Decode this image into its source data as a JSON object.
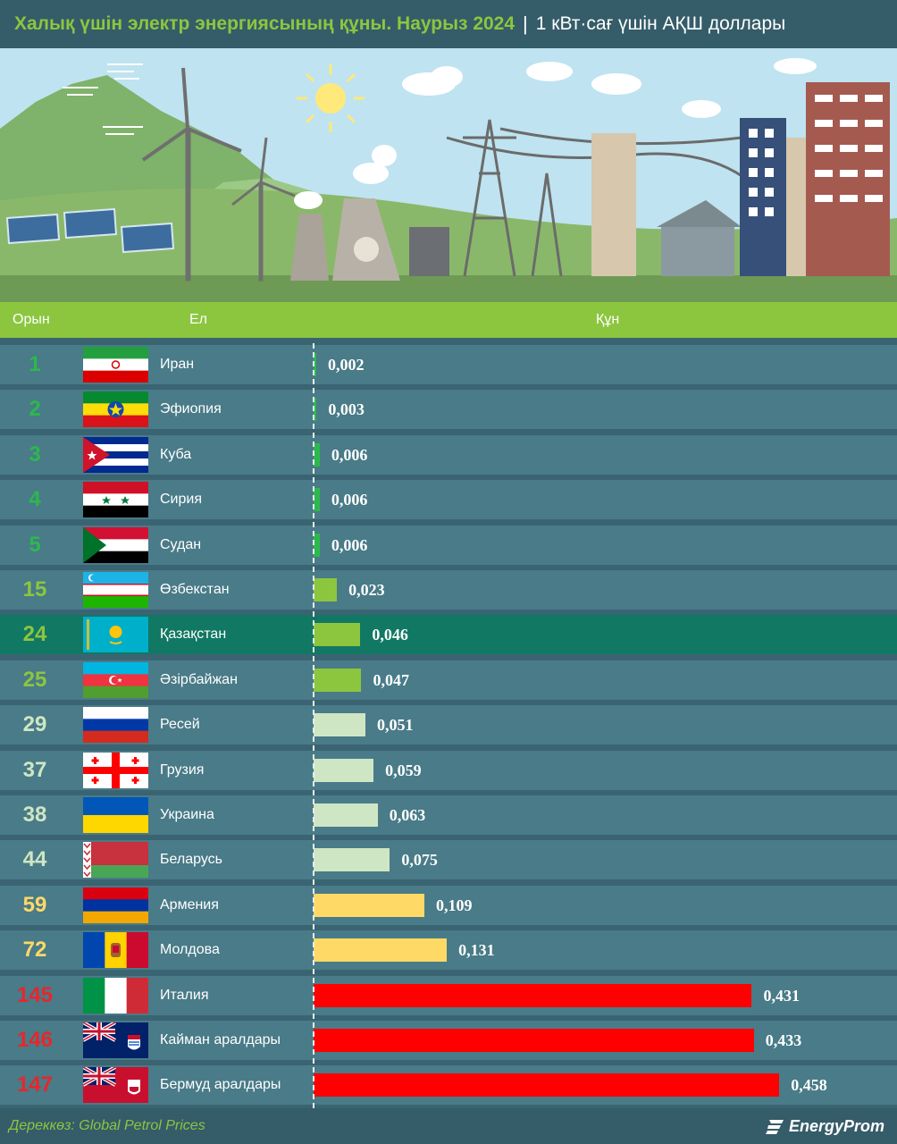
{
  "header": {
    "title": "Халық үшін электр энергиясының құны. Наурыз 2024",
    "separator": "|",
    "unit": "1 кВт·сағ үшін АҚШ доллары"
  },
  "table_header": {
    "rank": "Орын",
    "country": "Ел",
    "value": "Құн"
  },
  "colors": {
    "top5": "#2db84d",
    "cis_green": "#8cc63f",
    "cis_light": "#cfe6c4",
    "mid_yellow": "#ffd966",
    "top_red": "#ff0000",
    "highlight_row": "#117863",
    "row_bg": "#497b88",
    "rank_green": "#2db84d",
    "rank_lightgreen": "#8cc63f",
    "rank_pale": "#cfe6c4",
    "rank_yellow": "#ffd966",
    "rank_red": "#e8262b"
  },
  "chart_data": {
    "type": "bar",
    "orientation": "horizontal",
    "categories": [
      "Иран",
      "Эфиопия",
      "Куба",
      "Сирия",
      "Судан",
      "Өзбекстан",
      "Қазақстан",
      "Әзірбайжан",
      "Ресей",
      "Грузия",
      "Украина",
      "Беларусь",
      "Армения",
      "Молдова",
      "Италия",
      "Кайман аралдары",
      "Бермуд аралдары"
    ],
    "ranks": [
      "1",
      "2",
      "3",
      "4",
      "5",
      "15",
      "24",
      "25",
      "29",
      "37",
      "38",
      "44",
      "59",
      "72",
      "145",
      "146",
      "147"
    ],
    "values": [
      0.002,
      0.003,
      0.006,
      0.006,
      0.006,
      0.023,
      0.046,
      0.047,
      0.051,
      0.059,
      0.063,
      0.075,
      0.109,
      0.131,
      0.431,
      0.433,
      0.458
    ],
    "value_labels": [
      "0,002",
      "0,003",
      "0,006",
      "0,006",
      "0,006",
      "0,023",
      "0,046",
      "0,047",
      "0,051",
      "0,059",
      "0,063",
      "0,075",
      "0,109",
      "0,131",
      "0,431",
      "0,433",
      "0,458"
    ],
    "groups": [
      "top5",
      "top5",
      "top5",
      "top5",
      "top5",
      "cis_green",
      "cis_green",
      "cis_green",
      "cis_light",
      "cis_light",
      "cis_light",
      "cis_light",
      "mid_yellow",
      "mid_yellow",
      "top_red",
      "top_red",
      "top_red"
    ],
    "flags": [
      "iran",
      "ethiopia",
      "cuba",
      "syria",
      "sudan",
      "uzbekistan",
      "kazakhstan",
      "azerbaijan",
      "russia",
      "georgia",
      "ukraine",
      "belarus",
      "armenia",
      "moldova",
      "italy",
      "cayman",
      "bermuda"
    ],
    "highlight": "Қазақстан",
    "xlim": [
      0,
      0.5
    ]
  },
  "footer": {
    "source": "Дереккөз: Global Petrol Prices",
    "logo": "EnergyProm"
  }
}
